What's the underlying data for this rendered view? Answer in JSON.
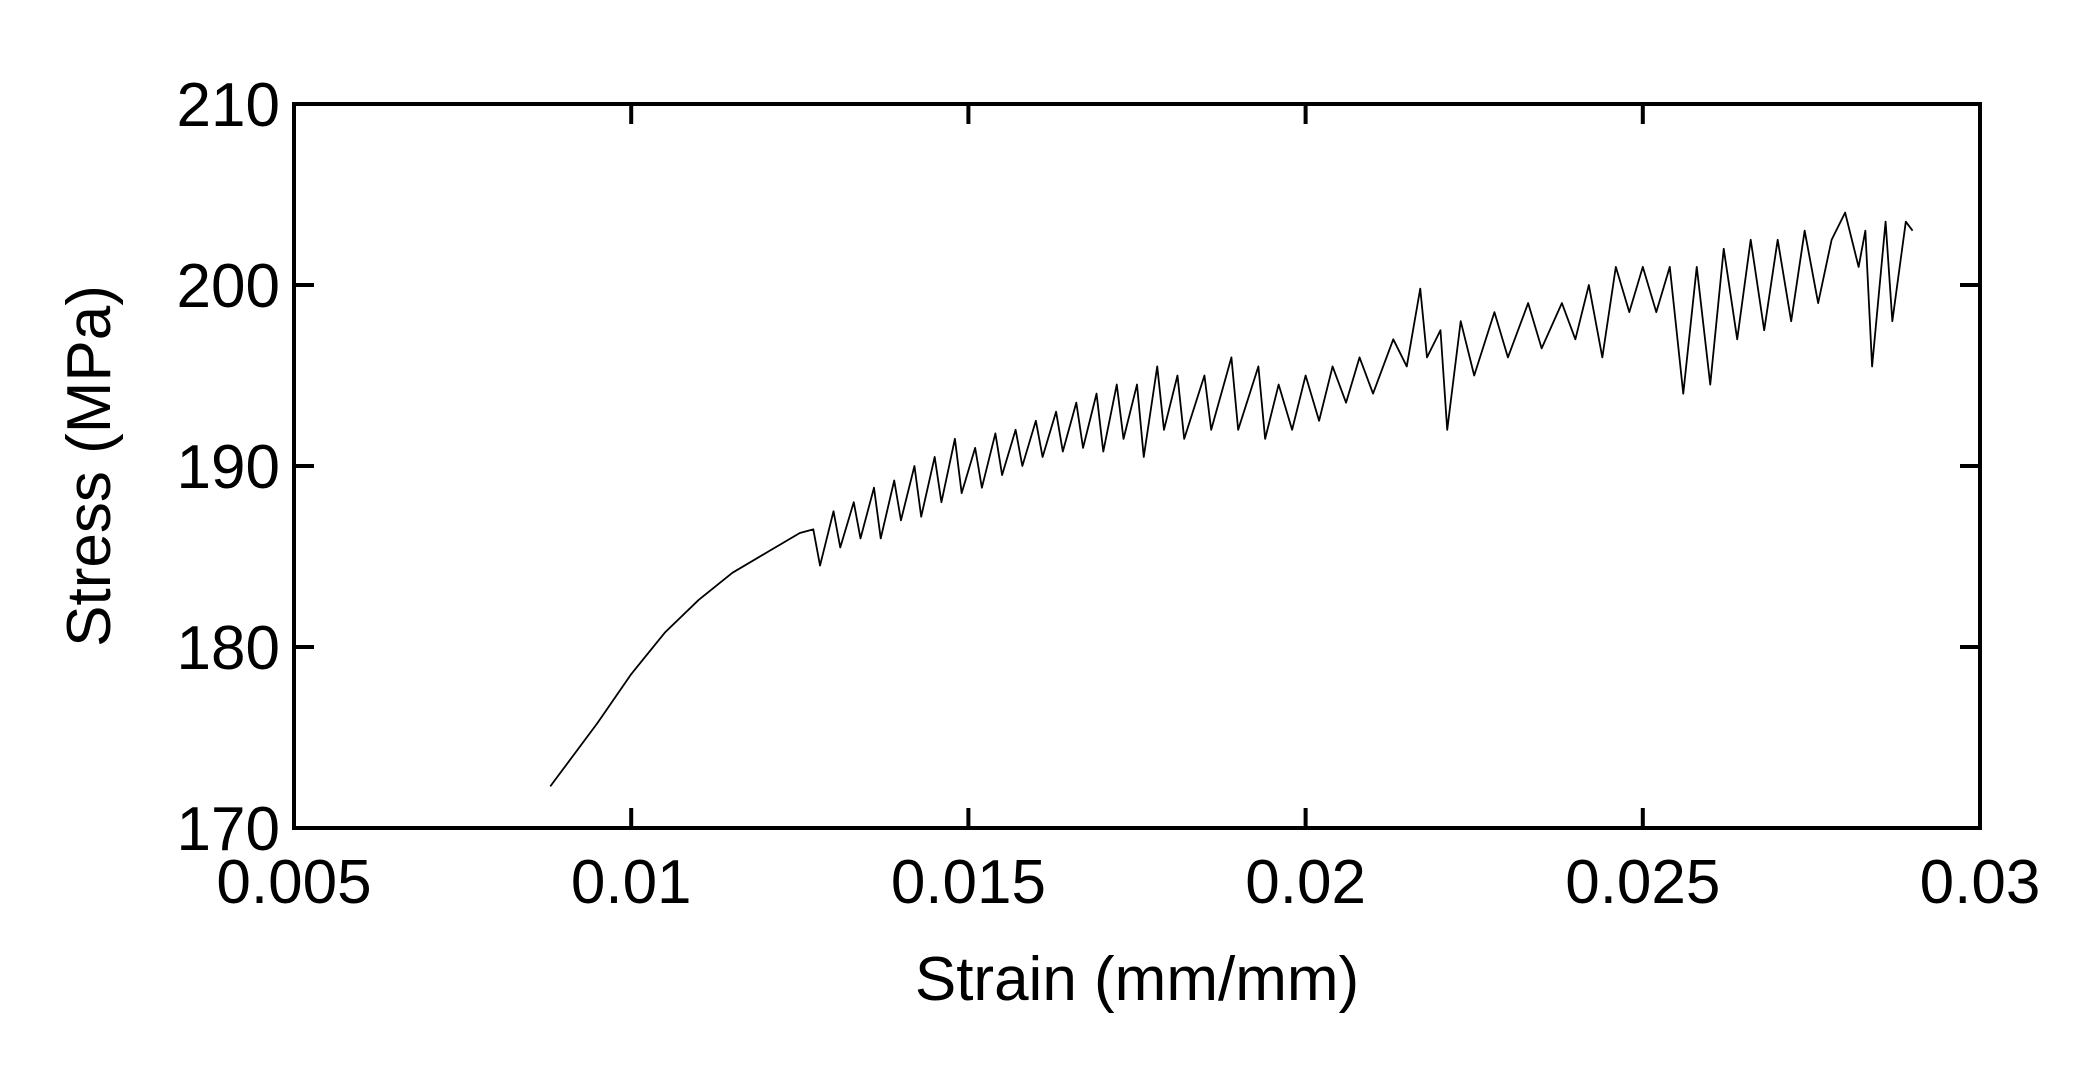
{
  "chart_data": {
    "type": "line",
    "xlabel": "Strain (mm/mm)",
    "ylabel": "Stress (MPa)",
    "xlim": [
      0.005,
      0.03
    ],
    "xticks": [
      0.005,
      0.01,
      0.015,
      0.02,
      0.025,
      0.03
    ],
    "ylim": [
      170,
      210
    ],
    "yticks": [
      170,
      180,
      190,
      200,
      210
    ],
    "grid": false,
    "series": [
      {
        "color": "#000000",
        "x": [
          0.0088,
          0.0095,
          0.01,
          0.0105,
          0.011,
          0.0115,
          0.012,
          0.0125,
          0.0127,
          0.0128,
          0.013,
          0.0131,
          0.0133,
          0.0134,
          0.0136,
          0.0137,
          0.0139,
          0.014,
          0.0142,
          0.0143,
          0.0145,
          0.0146,
          0.0148,
          0.0149,
          0.0151,
          0.0152,
          0.0154,
          0.0155,
          0.0157,
          0.0158,
          0.016,
          0.0161,
          0.0163,
          0.0164,
          0.0166,
          0.0167,
          0.0169,
          0.017,
          0.0172,
          0.0173,
          0.0175,
          0.0176,
          0.0178,
          0.0179,
          0.0181,
          0.0182,
          0.0185,
          0.0186,
          0.0189,
          0.019,
          0.0193,
          0.0194,
          0.0196,
          0.0198,
          0.02,
          0.0202,
          0.0204,
          0.0206,
          0.0208,
          0.021,
          0.0213,
          0.0215,
          0.0217,
          0.0218,
          0.022,
          0.0221,
          0.0223,
          0.0225,
          0.0228,
          0.023,
          0.0233,
          0.0235,
          0.0238,
          0.024,
          0.0242,
          0.0244,
          0.0246,
          0.0248,
          0.025,
          0.0252,
          0.0254,
          0.0256,
          0.0258,
          0.026,
          0.0262,
          0.0264,
          0.0266,
          0.0268,
          0.027,
          0.0272,
          0.0274,
          0.0276,
          0.0278,
          0.028,
          0.0282,
          0.0283,
          0.0284,
          0.0286,
          0.0287,
          0.0289,
          0.029
        ],
        "values": [
          172.3,
          175.8,
          178.5,
          180.8,
          182.6,
          184.1,
          185.2,
          186.3,
          186.5,
          184.5,
          187.5,
          185.5,
          188.0,
          186.0,
          188.8,
          186.0,
          189.2,
          187.0,
          190.0,
          187.2,
          190.5,
          188.0,
          191.5,
          188.5,
          191.0,
          188.8,
          191.8,
          189.5,
          192.0,
          190.0,
          192.5,
          190.5,
          193.0,
          190.8,
          193.5,
          191.0,
          194.0,
          190.8,
          194.5,
          191.5,
          194.5,
          190.5,
          195.5,
          192.0,
          195.0,
          191.5,
          195.0,
          192.0,
          196.0,
          192.0,
          195.5,
          191.5,
          194.5,
          192.0,
          195.0,
          192.5,
          195.5,
          193.5,
          196.0,
          194.0,
          197.0,
          195.5,
          199.8,
          196.0,
          197.5,
          192.0,
          198.0,
          195.0,
          198.5,
          196.0,
          199.0,
          196.5,
          199.0,
          197.0,
          200.0,
          196.0,
          201.0,
          198.5,
          201.0,
          198.5,
          201.0,
          194.0,
          201.0,
          194.5,
          202.0,
          197.0,
          202.5,
          197.5,
          202.5,
          198.0,
          203.0,
          199.0,
          202.5,
          204.0,
          201.0,
          203.0,
          195.5,
          203.5,
          198.0,
          203.5,
          203.0
        ]
      }
    ]
  }
}
